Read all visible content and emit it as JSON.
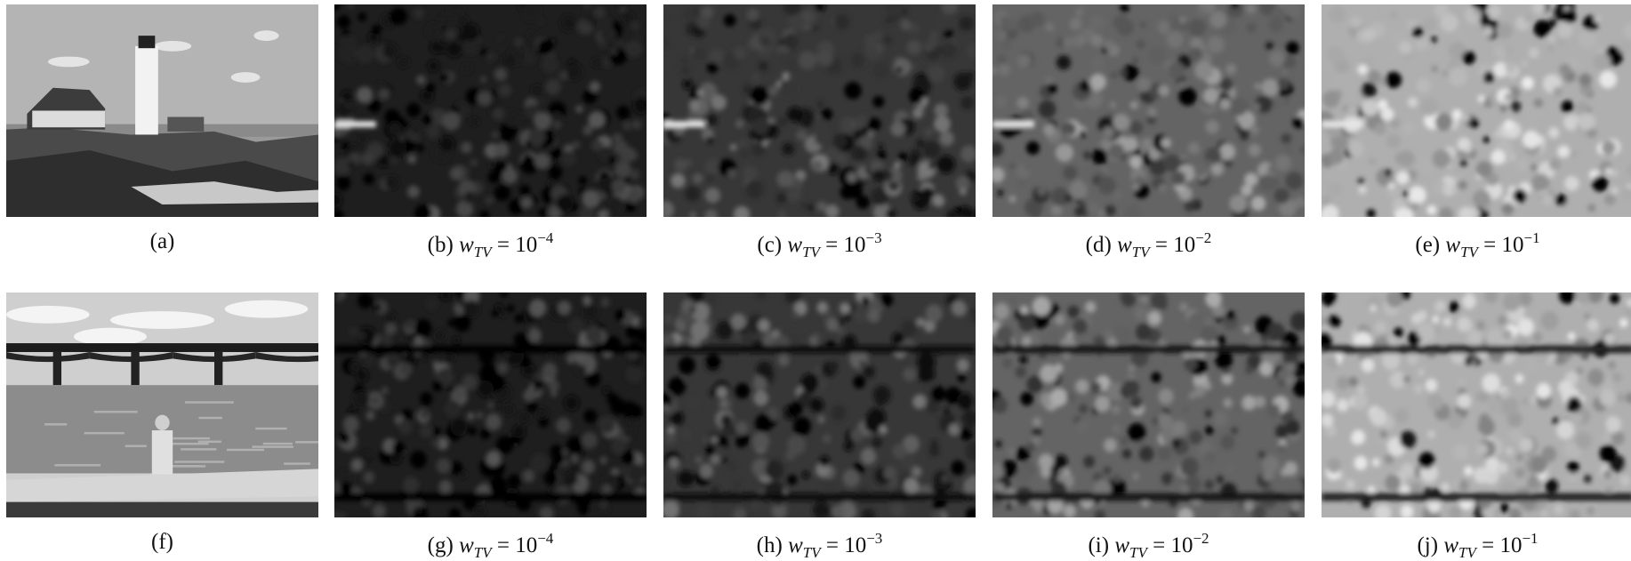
{
  "rows": [
    [
      {
        "label": "(a)"
      },
      {
        "label": "(b)",
        "var": "w",
        "sub": "TV",
        "rel": "=",
        "base": "10",
        "exp": "−4"
      },
      {
        "label": "(c)",
        "var": "w",
        "sub": "TV",
        "rel": "=",
        "base": "10",
        "exp": "−3"
      },
      {
        "label": "(d)",
        "var": "w",
        "sub": "TV",
        "rel": "=",
        "base": "10",
        "exp": "−2"
      },
      {
        "label": "(e)",
        "var": "w",
        "sub": "TV",
        "rel": "=",
        "base": "10",
        "exp": "−1"
      }
    ],
    [
      {
        "label": "(f)"
      },
      {
        "label": "(g)",
        "var": "w",
        "sub": "TV",
        "rel": "=",
        "base": "10",
        "exp": "−4"
      },
      {
        "label": "(h)",
        "var": "w",
        "sub": "TV",
        "rel": "=",
        "base": "10",
        "exp": "−3"
      },
      {
        "label": "(i)",
        "var": "w",
        "sub": "TV",
        "rel": "=",
        "base": "10",
        "exp": "−2"
      },
      {
        "label": "(j)",
        "var": "w",
        "sub": "TV",
        "rel": "=",
        "base": "10",
        "exp": "−1"
      }
    ]
  ]
}
